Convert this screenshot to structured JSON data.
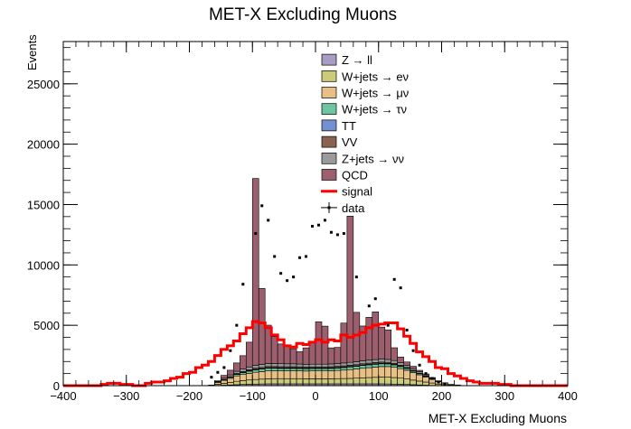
{
  "chart_data": {
    "type": "histogram-stacked",
    "title": "MET-X Excluding Muons",
    "xlabel": "MET-X Excluding Muons",
    "ylabel": "Events",
    "xlim": [
      -400,
      400
    ],
    "ylim": [
      0,
      28500
    ],
    "xticks": [
      -400,
      -300,
      -200,
      -100,
      0,
      100,
      200,
      300,
      400
    ],
    "yticks": [
      0,
      5000,
      10000,
      15000,
      20000,
      25000
    ],
    "bin_width": 10,
    "bin_edges_start": -400,
    "legend_position": "top-right",
    "legend": [
      {
        "label": "Z → ll",
        "kind": "fill",
        "color": "#a89bc4"
      },
      {
        "label": "W+jets → eν",
        "kind": "fill",
        "color": "#cbcb7a"
      },
      {
        "label": "W+jets → μν",
        "kind": "fill",
        "color": "#e8bf85"
      },
      {
        "label": "W+jets → τν",
        "kind": "fill",
        "color": "#6dc5a1"
      },
      {
        "label": "TT",
        "kind": "fill",
        "color": "#7391d2"
      },
      {
        "label": "VV",
        "kind": "fill",
        "color": "#8a6350"
      },
      {
        "label": "Z+jets → νν",
        "kind": "fill",
        "color": "#9a9a9a"
      },
      {
        "label": "QCD",
        "kind": "fill",
        "color": "#9b5f6e"
      },
      {
        "label": "signal",
        "kind": "line",
        "color": "#ff0000"
      },
      {
        "label": "data",
        "kind": "marker",
        "color": "#000000"
      }
    ],
    "series": [
      {
        "name": "Z → ll",
        "color": "#a89bc4",
        "values": [
          0,
          0,
          0,
          0,
          0,
          0,
          0,
          0,
          0,
          0,
          0,
          0,
          0,
          0,
          0,
          0,
          0,
          0,
          0,
          0,
          0,
          0,
          0,
          0,
          20,
          40,
          60,
          80,
          100,
          120,
          130,
          140,
          150,
          150,
          150,
          150,
          150,
          150,
          150,
          150,
          150,
          150,
          150,
          150,
          150,
          150,
          150,
          150,
          150,
          150,
          150,
          140,
          130,
          120,
          100,
          80,
          60,
          40,
          20,
          0,
          0,
          0,
          0,
          0,
          0,
          0,
          0,
          0,
          0,
          0,
          0,
          0,
          0,
          0,
          0,
          0,
          0,
          0,
          0,
          0
        ]
      },
      {
        "name": "W+jets → eν",
        "color": "#cbcb7a",
        "values": [
          0,
          0,
          0,
          0,
          0,
          0,
          0,
          0,
          0,
          0,
          0,
          0,
          0,
          0,
          0,
          0,
          0,
          0,
          0,
          0,
          0,
          0,
          0,
          0,
          100,
          150,
          200,
          280,
          320,
          350,
          380,
          400,
          420,
          430,
          430,
          430,
          430,
          430,
          420,
          420,
          420,
          420,
          420,
          430,
          440,
          450,
          470,
          500,
          520,
          540,
          560,
          560,
          540,
          500,
          450,
          380,
          320,
          260,
          200,
          130,
          90,
          50,
          20,
          0,
          0,
          0,
          0,
          0,
          0,
          0,
          0,
          0,
          0,
          0,
          0,
          0,
          0,
          0,
          0,
          0
        ]
      },
      {
        "name": "W+jets → μν",
        "color": "#e8bf85",
        "values": [
          0,
          0,
          0,
          0,
          0,
          0,
          0,
          0,
          0,
          0,
          0,
          0,
          0,
          0,
          0,
          0,
          0,
          0,
          0,
          0,
          0,
          0,
          0,
          0,
          150,
          250,
          350,
          450,
          500,
          550,
          600,
          620,
          650,
          650,
          650,
          650,
          650,
          650,
          640,
          650,
          650,
          650,
          660,
          680,
          700,
          730,
          760,
          790,
          820,
          850,
          870,
          880,
          850,
          790,
          720,
          620,
          520,
          420,
          300,
          200,
          130,
          80,
          40,
          0,
          0,
          0,
          0,
          0,
          0,
          0,
          0,
          0,
          0,
          0,
          0,
          0,
          0,
          0,
          0,
          0
        ]
      },
      {
        "name": "W+jets → τν",
        "color": "#6dc5a1",
        "values": [
          0,
          0,
          0,
          0,
          0,
          0,
          0,
          0,
          0,
          0,
          0,
          0,
          0,
          0,
          0,
          0,
          0,
          0,
          0,
          0,
          0,
          0,
          0,
          0,
          30,
          50,
          80,
          120,
          150,
          180,
          200,
          210,
          220,
          210,
          200,
          200,
          200,
          190,
          190,
          190,
          190,
          190,
          200,
          200,
          210,
          220,
          220,
          230,
          230,
          230,
          230,
          220,
          200,
          170,
          150,
          120,
          90,
          60,
          40,
          30,
          20,
          0,
          0,
          0,
          0,
          0,
          0,
          0,
          0,
          0,
          0,
          0,
          0,
          0,
          0,
          0,
          0,
          0,
          0,
          0
        ]
      },
      {
        "name": "TT",
        "color": "#7391d2",
        "values": [
          0,
          0,
          0,
          0,
          0,
          0,
          0,
          0,
          0,
          0,
          0,
          0,
          0,
          0,
          0,
          0,
          0,
          0,
          0,
          0,
          0,
          0,
          0,
          0,
          0,
          0,
          10,
          20,
          30,
          40,
          40,
          40,
          40,
          40,
          40,
          40,
          40,
          40,
          40,
          40,
          40,
          40,
          40,
          40,
          40,
          40,
          40,
          40,
          40,
          40,
          40,
          40,
          40,
          30,
          20,
          10,
          0,
          0,
          0,
          0,
          0,
          0,
          0,
          0,
          0,
          0,
          0,
          0,
          0,
          0,
          0,
          0,
          0,
          0,
          0,
          0,
          0,
          0,
          0,
          0
        ]
      },
      {
        "name": "VV",
        "color": "#8a6350",
        "values": [
          0,
          0,
          0,
          0,
          0,
          0,
          0,
          0,
          0,
          0,
          0,
          0,
          0,
          0,
          0,
          0,
          0,
          0,
          0,
          0,
          0,
          0,
          0,
          0,
          0,
          20,
          40,
          60,
          70,
          80,
          90,
          90,
          100,
          100,
          100,
          100,
          100,
          100,
          100,
          100,
          100,
          100,
          100,
          100,
          100,
          100,
          100,
          100,
          100,
          100,
          100,
          90,
          90,
          80,
          70,
          60,
          40,
          20,
          0,
          0,
          0,
          0,
          0,
          0,
          0,
          0,
          0,
          0,
          0,
          0,
          0,
          0,
          0,
          0,
          0,
          0,
          0,
          0,
          0,
          0
        ]
      },
      {
        "name": "Z+jets → νν",
        "color": "#9a9a9a",
        "values": [
          0,
          0,
          0,
          0,
          0,
          0,
          0,
          0,
          0,
          0,
          0,
          0,
          0,
          0,
          0,
          0,
          0,
          0,
          0,
          0,
          0,
          0,
          0,
          0,
          50,
          100,
          150,
          180,
          200,
          230,
          240,
          250,
          250,
          250,
          250,
          240,
          240,
          230,
          230,
          230,
          230,
          230,
          230,
          240,
          240,
          240,
          250,
          250,
          250,
          250,
          250,
          240,
          230,
          210,
          180,
          150,
          120,
          90,
          60,
          30,
          0,
          0,
          0,
          0,
          0,
          0,
          0,
          0,
          0,
          0,
          0,
          0,
          0,
          0,
          0,
          0,
          0,
          0,
          0,
          0
        ]
      },
      {
        "name": "QCD",
        "color": "#9b5f6e",
        "values": [
          0,
          0,
          0,
          0,
          0,
          0,
          0,
          0,
          0,
          0,
          0,
          0,
          0,
          0,
          0,
          0,
          0,
          0,
          0,
          0,
          0,
          0,
          0,
          50,
          50,
          240,
          390,
          690,
          1110,
          2050,
          15480,
          6300,
          3180,
          2230,
          1630,
          1540,
          1250,
          1020,
          1360,
          1800,
          3510,
          3150,
          1330,
          1330,
          3300,
          12110,
          4080,
          2880,
          3550,
          3950,
          2650,
          2450,
          1060,
          470,
          270,
          180,
          120,
          80,
          50,
          10,
          0,
          0,
          0,
          0,
          0,
          0,
          0,
          0,
          0,
          0,
          0,
          0,
          0,
          0,
          0,
          0,
          0,
          0,
          0,
          0
        ]
      },
      {
        "name": "signal",
        "color": "#ff0000",
        "style": "step-line",
        "values": [
          0,
          0,
          0,
          0,
          0,
          0,
          100,
          200,
          200,
          100,
          100,
          0,
          0,
          200,
          300,
          300,
          400,
          600,
          700,
          1000,
          1100,
          1500,
          1700,
          2000,
          2500,
          3000,
          3300,
          3700,
          4300,
          4800,
          5300,
          5200,
          4800,
          4200,
          3800,
          3300,
          3200,
          3500,
          3400,
          3600,
          3800,
          3600,
          3800,
          3700,
          4200,
          4000,
          4200,
          4400,
          4800,
          5000,
          5100,
          5200,
          5200,
          4700,
          4100,
          3500,
          2800,
          2400,
          2000,
          1500,
          1400,
          1000,
          800,
          600,
          400,
          300,
          200,
          200,
          200,
          100,
          100,
          0,
          0,
          0,
          0,
          0,
          0,
          0,
          0,
          0
        ]
      },
      {
        "name": "data",
        "kind": "points",
        "points": [
          [
            -165,
            700
          ],
          [
            -155,
            1100
          ],
          [
            -145,
            1500
          ],
          [
            -135,
            2900
          ],
          [
            -125,
            5000
          ],
          [
            -115,
            8400
          ],
          [
            -95,
            12600
          ],
          [
            -85,
            14900
          ],
          [
            -75,
            13700
          ],
          [
            -65,
            10700
          ],
          [
            -55,
            9300
          ],
          [
            -45,
            8700
          ],
          [
            -35,
            9000
          ],
          [
            -25,
            10600
          ],
          [
            -15,
            10700
          ],
          [
            -5,
            13200
          ],
          [
            5,
            13300
          ],
          [
            15,
            13700
          ],
          [
            25,
            12700
          ],
          [
            35,
            12500
          ],
          [
            45,
            12600
          ],
          [
            65,
            9000
          ],
          [
            85,
            6600
          ],
          [
            95,
            7200
          ],
          [
            115,
            5000
          ],
          [
            125,
            8800
          ],
          [
            135,
            8100
          ],
          [
            145,
            4600
          ],
          [
            155,
            2900
          ],
          [
            165,
            1700
          ],
          [
            175,
            1000
          ],
          [
            185,
            600
          ],
          [
            195,
            300
          ],
          [
            205,
            150
          ]
        ]
      }
    ]
  }
}
